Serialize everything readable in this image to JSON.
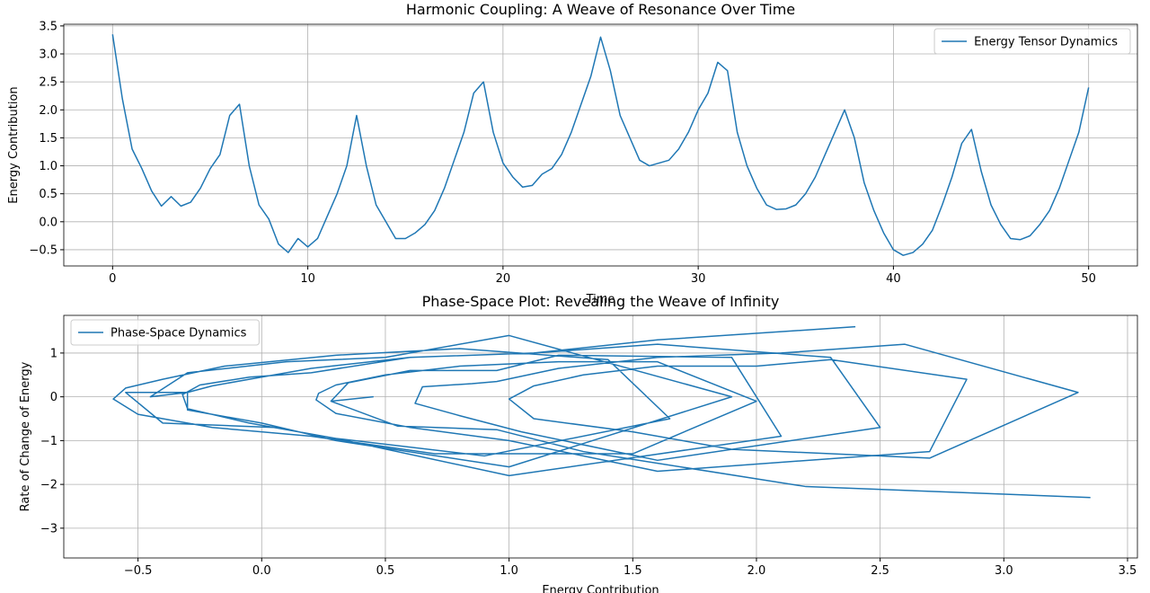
{
  "chart_data": [
    {
      "type": "line",
      "title": "Harmonic Coupling: A Weave of Resonance Over Time",
      "xlabel": "Time",
      "ylabel": "Energy Contribution",
      "x": [
        0,
        0.5,
        1,
        1.5,
        2,
        2.5,
        3,
        3.5,
        4,
        4.5,
        5,
        5.5,
        6,
        6.5,
        7,
        7.5,
        8,
        8.5,
        9,
        9.5,
        10,
        10.5,
        11,
        11.5,
        12,
        12.5,
        13,
        13.5,
        14,
        14.5,
        15,
        15.5,
        16,
        16.5,
        17,
        17.5,
        18,
        18.5,
        19,
        19.5,
        20,
        20.5,
        21,
        21.5,
        22,
        22.5,
        23,
        23.5,
        24,
        24.5,
        25,
        25.5,
        26,
        26.5,
        27,
        27.5,
        28,
        28.5,
        29,
        29.5,
        30,
        30.5,
        31,
        31.5,
        32,
        32.5,
        33,
        33.5,
        34,
        34.5,
        35,
        35.5,
        36,
        36.5,
        37,
        37.5,
        38,
        38.5,
        39,
        39.5,
        40,
        40.5,
        41,
        41.5,
        42,
        42.5,
        43,
        43.5,
        44,
        44.5,
        45,
        45.5,
        46,
        46.5,
        47,
        47.5,
        48,
        48.5,
        49,
        49.5,
        50
      ],
      "series": [
        {
          "name": "Energy Tensor Dynamics",
          "color": "#1f77b4",
          "values": [
            3.35,
            2.2,
            1.3,
            0.95,
            0.55,
            0.28,
            0.45,
            0.28,
            0.35,
            0.6,
            0.95,
            1.2,
            1.9,
            2.1,
            1.0,
            0.3,
            0.05,
            -0.4,
            -0.55,
            -0.3,
            -0.45,
            -0.3,
            0.1,
            0.5,
            1.0,
            1.9,
            1.0,
            0.3,
            0.0,
            -0.3,
            -0.3,
            -0.2,
            -0.05,
            0.2,
            0.6,
            1.1,
            1.6,
            2.3,
            2.5,
            1.6,
            1.05,
            0.8,
            0.62,
            0.65,
            0.85,
            0.95,
            1.2,
            1.6,
            2.1,
            2.6,
            3.3,
            2.7,
            1.9,
            1.5,
            1.1,
            1.0,
            1.05,
            1.1,
            1.3,
            1.6,
            2.0,
            2.3,
            2.85,
            2.7,
            1.6,
            1.0,
            0.6,
            0.3,
            0.22,
            0.23,
            0.3,
            0.5,
            0.8,
            1.2,
            1.6,
            2.0,
            1.5,
            0.7,
            0.2,
            -0.2,
            -0.5,
            -0.6,
            -0.55,
            -0.4,
            -0.15,
            0.3,
            0.8,
            1.4,
            1.65,
            0.9,
            0.3,
            -0.05,
            -0.3,
            -0.32,
            -0.25,
            -0.05,
            0.2,
            0.6,
            1.1,
            1.6,
            2.4
          ]
        }
      ],
      "xlim": [
        -2.5,
        52.5
      ],
      "ylim": [
        -0.79,
        3.53
      ],
      "xticks": [
        0,
        10,
        20,
        30,
        40,
        50
      ],
      "yticks": [
        {
          "value": -0.5,
          "label": "−0.5"
        },
        {
          "value": 0,
          "label": "0.0"
        },
        {
          "value": 0.5,
          "label": "0.5"
        },
        {
          "value": 1,
          "label": "1.0"
        },
        {
          "value": 1.5,
          "label": "1.5"
        },
        {
          "value": 2,
          "label": "2.0"
        },
        {
          "value": 2.5,
          "label": "2.5"
        },
        {
          "value": 3,
          "label": "3.0"
        },
        {
          "value": 3.5,
          "label": "3.5"
        }
      ],
      "grid": true,
      "legend": "upper right"
    },
    {
      "type": "line",
      "title": "Phase-Space Plot: Revealing the Weave of Infinity",
      "xlabel": "Energy Contribution",
      "ylabel": "Rate of Change of Energy",
      "x": [
        3.35,
        2.2,
        1.3,
        0.95,
        0.55,
        0.28,
        0.45,
        0.28,
        0.35,
        0.6,
        0.95,
        1.2,
        1.9,
        2.1,
        1.0,
        0.3,
        0.05,
        -0.4,
        -0.55,
        -0.3,
        -0.45,
        -0.3,
        0.1,
        0.5,
        1.0,
        1.9,
        1.0,
        0.3,
        0.0,
        -0.3,
        -0.3,
        -0.2,
        -0.05,
        0.2,
        0.6,
        1.1,
        1.6,
        2.3,
        2.5,
        1.6,
        1.05,
        0.8,
        0.62,
        0.65,
        0.85,
        0.95,
        1.2,
        1.6,
        2.1,
        2.6,
        3.3,
        2.7,
        1.9,
        1.5,
        1.1,
        1.0,
        1.05,
        1.1,
        1.3,
        1.6,
        2.0,
        2.3,
        2.85,
        2.7,
        1.6,
        1.0,
        0.6,
        0.3,
        0.22,
        0.23,
        0.3,
        0.5,
        0.8,
        1.2,
        1.6,
        2.0,
        1.5,
        0.7,
        0.2,
        -0.2,
        -0.5,
        -0.6,
        -0.55,
        -0.4,
        -0.15,
        0.3,
        0.8,
        1.4,
        1.65,
        0.9,
        0.3,
        -0.05,
        -0.3,
        -0.32,
        -0.25,
        -0.05,
        0.2,
        0.6,
        1.1,
        1.6,
        2.4
      ],
      "series": [
        {
          "name": "Phase-Space Dynamics",
          "color": "#1f77b4",
          "values": [
            -2.3,
            -2.05,
            -1.25,
            -0.75,
            -0.67,
            -0.1,
            0,
            -0.1,
            0.32,
            0.6,
            0.6,
            0.95,
            0.9,
            -0.9,
            -1.8,
            -0.95,
            -0.7,
            -0.6,
            0.1,
            0.1,
            0,
            0.55,
            0.8,
            0.9,
            1.4,
            0,
            -1.6,
            -1.0,
            -0.6,
            -0.3,
            0.1,
            0.25,
            0.4,
            0.65,
            0.9,
            1.0,
            1.2,
            0.9,
            -0.7,
            -1.45,
            -0.8,
            -0.43,
            -0.15,
            0.23,
            0.3,
            0.35,
            0.65,
            0.9,
            1.0,
            1.2,
            0.1,
            -1.4,
            -1.2,
            -0.8,
            -0.5,
            -0.05,
            0.1,
            0.25,
            0.5,
            0.7,
            0.7,
            0.85,
            0.4,
            -1.25,
            -1.7,
            -1.0,
            -0.7,
            -0.38,
            -0.07,
            0.08,
            0.27,
            0.5,
            0.7,
            0.8,
            0.8,
            -0.1,
            -1.3,
            -1.3,
            -0.9,
            -0.7,
            -0.4,
            -0.05,
            0.2,
            0.4,
            0.7,
            0.95,
            1.1,
            0.85,
            -0.5,
            -1.35,
            -0.95,
            -0.6,
            -0.27,
            0.05,
            0.27,
            0.45,
            0.55,
            0.9,
            1.0,
            1.3,
            1.6
          ]
        }
      ],
      "xlim": [
        -0.8,
        3.54
      ],
      "ylim": [
        -3.68,
        1.86
      ],
      "xticks": [
        {
          "value": -0.5,
          "label": "−0.5"
        },
        {
          "value": 0,
          "label": "0.0"
        },
        {
          "value": 0.5,
          "label": "0.5"
        },
        {
          "value": 1,
          "label": "1.0"
        },
        {
          "value": 1.5,
          "label": "1.5"
        },
        {
          "value": 2,
          "label": "2.0"
        },
        {
          "value": 2.5,
          "label": "2.5"
        },
        {
          "value": 3,
          "label": "3.0"
        },
        {
          "value": 3.5,
          "label": "3.5"
        }
      ],
      "yticks": [
        {
          "value": -3,
          "label": "−3"
        },
        {
          "value": -2,
          "label": "−2"
        },
        {
          "value": -1,
          "label": "−1"
        },
        0,
        1
      ],
      "grid": true,
      "legend": "upper left"
    }
  ]
}
